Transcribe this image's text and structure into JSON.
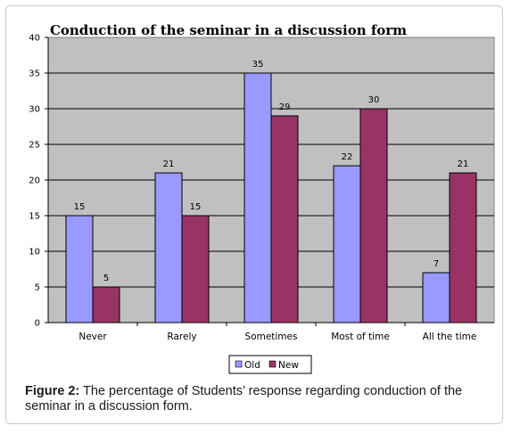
{
  "chart_data": {
    "type": "bar",
    "title": "Conduction of the seminar in a discussion form",
    "categories": [
      "Never",
      "Rarely",
      "Sometimes",
      "Most of time",
      "All the time"
    ],
    "series": [
      {
        "name": "Old",
        "values": [
          15,
          21,
          35,
          22,
          7
        ],
        "color": "#9999ff"
      },
      {
        "name": "New",
        "values": [
          5,
          15,
          29,
          30,
          21
        ],
        "color": "#993366"
      }
    ],
    "ylim": [
      0,
      40
    ],
    "yticks": [
      "0",
      "5",
      "10",
      "15",
      "20",
      "25",
      "30",
      "35",
      "40"
    ],
    "grid": true,
    "legend": "bottom",
    "plot_background": "#c0c0c0"
  },
  "caption": {
    "label": "Figure 2:",
    "text": "The percentage of Students’ response regarding conduction of the seminar in a discussion form."
  }
}
